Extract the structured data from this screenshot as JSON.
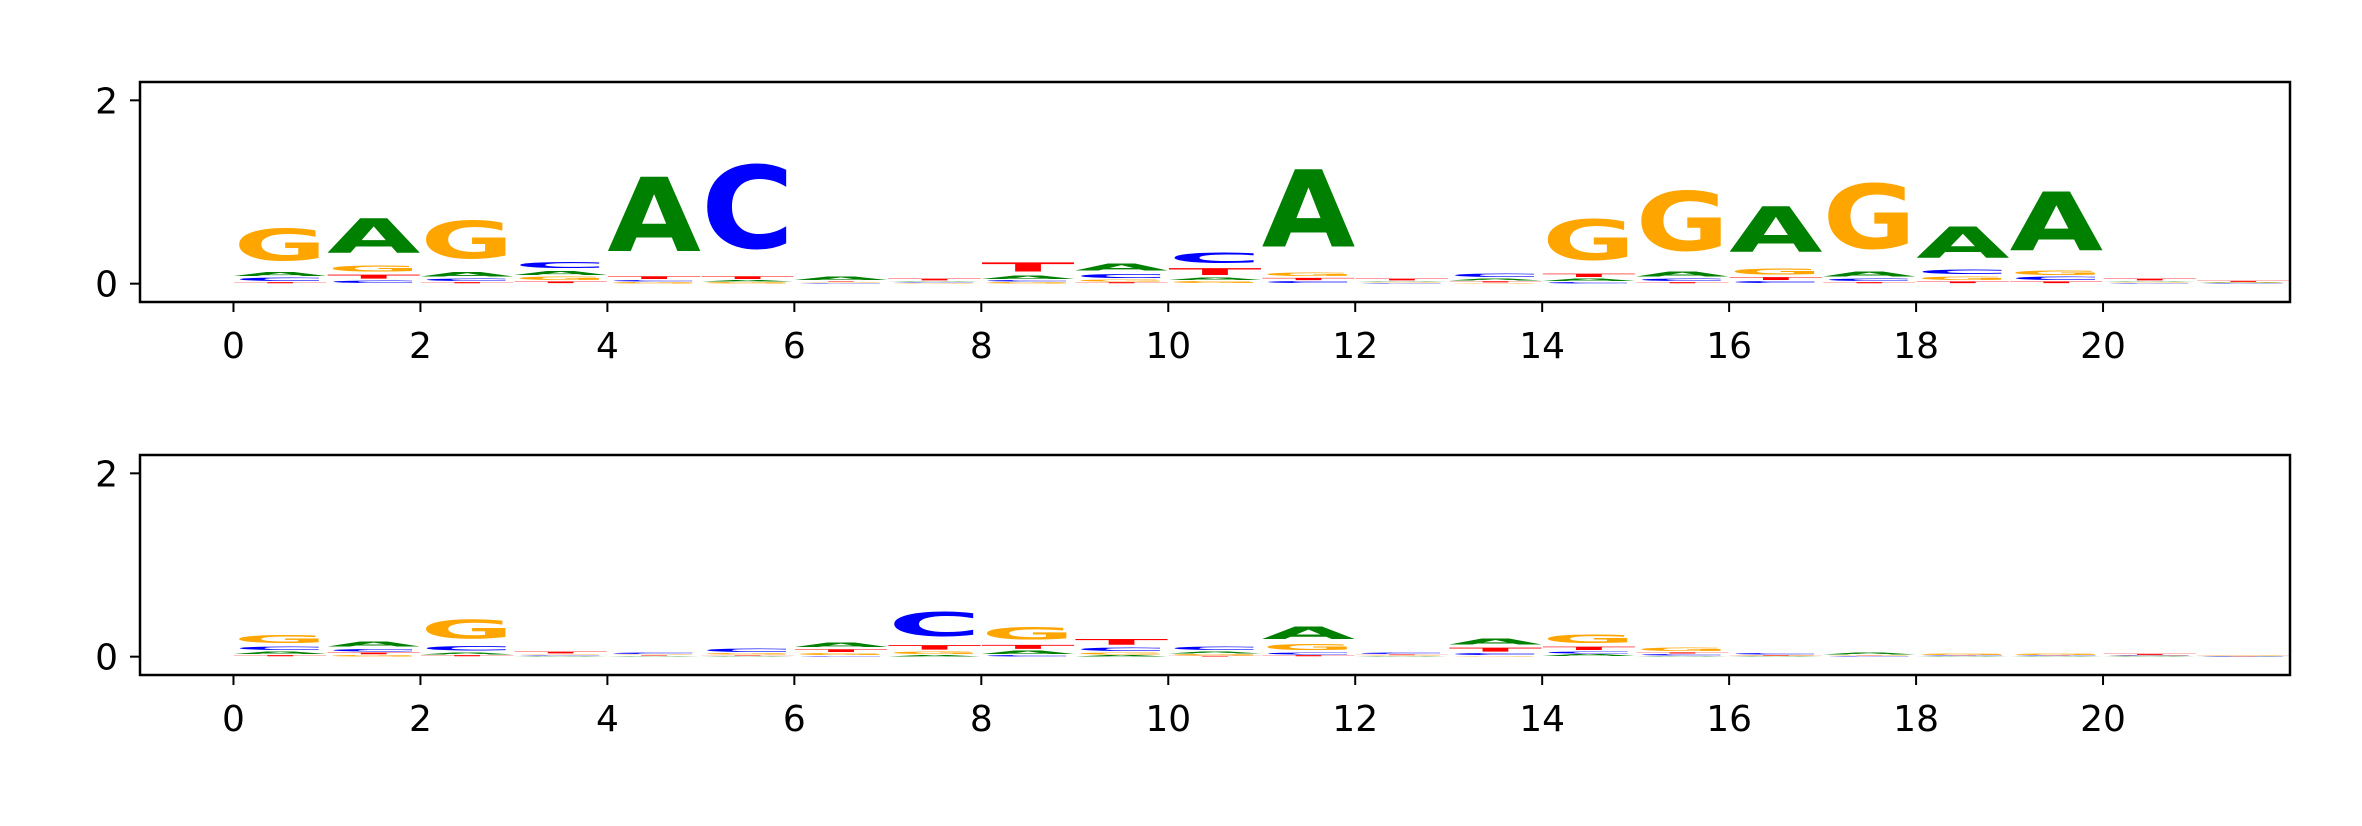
{
  "colors": {
    "A": "#008000",
    "C": "#0000ff",
    "G": "#ffa500",
    "T": "#ff0000"
  },
  "chart_data": [
    {
      "type": "sequence-logo",
      "title": "",
      "xlabel": "",
      "ylabel": "",
      "xlim": [
        -1,
        22
      ],
      "ylim": [
        -0.2,
        2.2
      ],
      "xticks": [
        0,
        2,
        4,
        6,
        8,
        10,
        12,
        14,
        16,
        18,
        20
      ],
      "yticks": [
        0,
        2
      ],
      "positions": [
        {
          "x": 0,
          "stack": [
            {
              "base": "T",
              "h": 0.02
            },
            {
              "base": "C",
              "h": 0.05
            },
            {
              "base": "A",
              "h": 0.07
            },
            {
              "base": "G",
              "h": 0.56
            }
          ]
        },
        {
          "x": 1,
          "stack": [
            {
              "base": "C",
              "h": 0.04
            },
            {
              "base": "T",
              "h": 0.07
            },
            {
              "base": "G",
              "h": 0.1
            },
            {
              "base": "A",
              "h": 0.6
            }
          ]
        },
        {
          "x": 2,
          "stack": [
            {
              "base": "T",
              "h": 0.02
            },
            {
              "base": "C",
              "h": 0.04
            },
            {
              "base": "A",
              "h": 0.08
            },
            {
              "base": "G",
              "h": 0.66
            }
          ]
        },
        {
          "x": 3,
          "stack": [
            {
              "base": "T",
              "h": 0.03
            },
            {
              "base": "G",
              "h": 0.05
            },
            {
              "base": "A",
              "h": 0.07
            },
            {
              "base": "C",
              "h": 0.1
            }
          ]
        },
        {
          "x": 4,
          "stack": [
            {
              "base": "G",
              "h": 0.02
            },
            {
              "base": "C",
              "h": 0.02
            },
            {
              "base": "T",
              "h": 0.05
            },
            {
              "base": "A",
              "h": 1.3
            }
          ]
        },
        {
          "x": 5,
          "stack": [
            {
              "base": "G",
              "h": 0.02
            },
            {
              "base": "A",
              "h": 0.02
            },
            {
              "base": "T",
              "h": 0.05
            },
            {
              "base": "C",
              "h": 1.45
            }
          ]
        },
        {
          "x": 6,
          "stack": [
            {
              "base": "C",
              "h": 0.01
            },
            {
              "base": "G",
              "h": 0.01
            },
            {
              "base": "T",
              "h": 0.01
            },
            {
              "base": "A",
              "h": 0.05
            }
          ]
        },
        {
          "x": 7,
          "stack": [
            {
              "base": "G",
              "h": 0.01
            },
            {
              "base": "C",
              "h": 0.01
            },
            {
              "base": "A",
              "h": 0.01
            },
            {
              "base": "T",
              "h": 0.03
            }
          ]
        },
        {
          "x": 8,
          "stack": [
            {
              "base": "G",
              "h": 0.02
            },
            {
              "base": "C",
              "h": 0.02
            },
            {
              "base": "A",
              "h": 0.06
            },
            {
              "base": "T",
              "h": 0.16
            }
          ]
        },
        {
          "x": 9,
          "stack": [
            {
              "base": "T",
              "h": 0.02
            },
            {
              "base": "G",
              "h": 0.03
            },
            {
              "base": "C",
              "h": 0.07
            },
            {
              "base": "A",
              "h": 0.12
            }
          ]
        },
        {
          "x": 10,
          "stack": [
            {
              "base": "G",
              "h": 0.03
            },
            {
              "base": "A",
              "h": 0.04
            },
            {
              "base": "T",
              "h": 0.12
            },
            {
              "base": "C",
              "h": 0.18
            }
          ]
        },
        {
          "x": 11,
          "stack": [
            {
              "base": "C",
              "h": 0.03
            },
            {
              "base": "T",
              "h": 0.04
            },
            {
              "base": "G",
              "h": 0.06
            },
            {
              "base": "A",
              "h": 1.35
            }
          ]
        },
        {
          "x": 12,
          "stack": [
            {
              "base": "C",
              "h": 0.01
            },
            {
              "base": "G",
              "h": 0.01
            },
            {
              "base": "A",
              "h": 0.01
            },
            {
              "base": "T",
              "h": 0.03
            }
          ]
        },
        {
          "x": 13,
          "stack": [
            {
              "base": "G",
              "h": 0.01
            },
            {
              "base": "T",
              "h": 0.02
            },
            {
              "base": "A",
              "h": 0.03
            },
            {
              "base": "C",
              "h": 0.06
            }
          ]
        },
        {
          "x": 14,
          "stack": [
            {
              "base": "C",
              "h": 0.02
            },
            {
              "base": "A",
              "h": 0.04
            },
            {
              "base": "T",
              "h": 0.06
            },
            {
              "base": "G",
              "h": 0.7
            }
          ]
        },
        {
          "x": 15,
          "stack": [
            {
              "base": "T",
              "h": 0.02
            },
            {
              "base": "C",
              "h": 0.04
            },
            {
              "base": "A",
              "h": 0.09
            },
            {
              "base": "G",
              "h": 1.03
            }
          ]
        },
        {
          "x": 16,
          "stack": [
            {
              "base": "C",
              "h": 0.03
            },
            {
              "base": "T",
              "h": 0.05
            },
            {
              "base": "G",
              "h": 0.1
            },
            {
              "base": "A",
              "h": 0.8
            }
          ]
        },
        {
          "x": 17,
          "stack": [
            {
              "base": "T",
              "h": 0.02
            },
            {
              "base": "C",
              "h": 0.04
            },
            {
              "base": "A",
              "h": 0.09
            },
            {
              "base": "G",
              "h": 1.13
            }
          ]
        },
        {
          "x": 18,
          "stack": [
            {
              "base": "T",
              "h": 0.03
            },
            {
              "base": "G",
              "h": 0.06
            },
            {
              "base": "C",
              "h": 0.08
            },
            {
              "base": "A",
              "h": 0.55
            }
          ]
        },
        {
          "x": 19,
          "stack": [
            {
              "base": "T",
              "h": 0.03
            },
            {
              "base": "C",
              "h": 0.05
            },
            {
              "base": "G",
              "h": 0.08
            },
            {
              "base": "A",
              "h": 1.02
            }
          ]
        },
        {
          "x": 20,
          "stack": [
            {
              "base": "C",
              "h": 0.01
            },
            {
              "base": "G",
              "h": 0.01
            },
            {
              "base": "A",
              "h": 0.01
            },
            {
              "base": "T",
              "h": 0.03
            }
          ]
        },
        {
          "x": 21,
          "stack": [
            {
              "base": "C",
              "h": 0.005
            },
            {
              "base": "G",
              "h": 0.005
            },
            {
              "base": "A",
              "h": 0.005
            },
            {
              "base": "T",
              "h": 0.02
            }
          ]
        }
      ]
    },
    {
      "type": "sequence-logo",
      "title": "",
      "xlabel": "",
      "ylabel": "",
      "xlim": [
        -1,
        22
      ],
      "ylim": [
        -0.2,
        2.2
      ],
      "xticks": [
        0,
        2,
        4,
        6,
        8,
        10,
        12,
        14,
        16,
        18,
        20
      ],
      "yticks": [
        0,
        2
      ],
      "positions": [
        {
          "x": 0,
          "stack": [
            {
              "base": "T",
              "h": 0.02
            },
            {
              "base": "A",
              "h": 0.04
            },
            {
              "base": "C",
              "h": 0.06
            },
            {
              "base": "G",
              "h": 0.14
            }
          ]
        },
        {
          "x": 1,
          "stack": [
            {
              "base": "G",
              "h": 0.02
            },
            {
              "base": "T",
              "h": 0.03
            },
            {
              "base": "C",
              "h": 0.04
            },
            {
              "base": "A",
              "h": 0.09
            }
          ]
        },
        {
          "x": 2,
          "stack": [
            {
              "base": "T",
              "h": 0.02
            },
            {
              "base": "A",
              "h": 0.03
            },
            {
              "base": "C",
              "h": 0.08
            },
            {
              "base": "G",
              "h": 0.33
            }
          ]
        },
        {
          "x": 3,
          "stack": [
            {
              "base": "A",
              "h": 0.01
            },
            {
              "base": "C",
              "h": 0.01
            },
            {
              "base": "G",
              "h": 0.01
            },
            {
              "base": "T",
              "h": 0.03
            }
          ]
        },
        {
          "x": 4,
          "stack": [
            {
              "base": "A",
              "h": 0.005
            },
            {
              "base": "T",
              "h": 0.01
            },
            {
              "base": "G",
              "h": 0.01
            },
            {
              "base": "C",
              "h": 0.02
            }
          ]
        },
        {
          "x": 5,
          "stack": [
            {
              "base": "A",
              "h": 0.01
            },
            {
              "base": "T",
              "h": 0.01
            },
            {
              "base": "G",
              "h": 0.02
            },
            {
              "base": "C",
              "h": 0.06
            }
          ]
        },
        {
          "x": 6,
          "stack": [
            {
              "base": "C",
              "h": 0.01
            },
            {
              "base": "G",
              "h": 0.03
            },
            {
              "base": "T",
              "h": 0.05
            },
            {
              "base": "A",
              "h": 0.08
            }
          ]
        },
        {
          "x": 7,
          "stack": [
            {
              "base": "A",
              "h": 0.02
            },
            {
              "base": "G",
              "h": 0.04
            },
            {
              "base": "T",
              "h": 0.08
            },
            {
              "base": "C",
              "h": 0.42
            }
          ]
        },
        {
          "x": 8,
          "stack": [
            {
              "base": "C",
              "h": 0.02
            },
            {
              "base": "A",
              "h": 0.05
            },
            {
              "base": "T",
              "h": 0.07
            },
            {
              "base": "G",
              "h": 0.22
            }
          ]
        },
        {
          "x": 9,
          "stack": [
            {
              "base": "A",
              "h": 0.02
            },
            {
              "base": "G",
              "h": 0.03
            },
            {
              "base": "C",
              "h": 0.06
            },
            {
              "base": "T",
              "h": 0.1
            }
          ]
        },
        {
          "x": 10,
          "stack": [
            {
              "base": "T",
              "h": 0.01
            },
            {
              "base": "G",
              "h": 0.02
            },
            {
              "base": "A",
              "h": 0.03
            },
            {
              "base": "C",
              "h": 0.06
            }
          ]
        },
        {
          "x": 11,
          "stack": [
            {
              "base": "T",
              "h": 0.02
            },
            {
              "base": "C",
              "h": 0.03
            },
            {
              "base": "G",
              "h": 0.1
            },
            {
              "base": "A",
              "h": 0.22
            }
          ]
        },
        {
          "x": 12,
          "stack": [
            {
              "base": "A",
              "h": 0.005
            },
            {
              "base": "G",
              "h": 0.01
            },
            {
              "base": "T",
              "h": 0.01
            },
            {
              "base": "C",
              "h": 0.02
            }
          ]
        },
        {
          "x": 13,
          "stack": [
            {
              "base": "G",
              "h": 0.01
            },
            {
              "base": "C",
              "h": 0.03
            },
            {
              "base": "T",
              "h": 0.07
            },
            {
              "base": "A",
              "h": 0.1
            }
          ]
        },
        {
          "x": 14,
          "stack": [
            {
              "base": "A",
              "h": 0.03
            },
            {
              "base": "C",
              "h": 0.03
            },
            {
              "base": "T",
              "h": 0.06
            },
            {
              "base": "G",
              "h": 0.15
            }
          ]
        },
        {
          "x": 15,
          "stack": [
            {
              "base": "A",
              "h": 0.01
            },
            {
              "base": "C",
              "h": 0.02
            },
            {
              "base": "T",
              "h": 0.02
            },
            {
              "base": "G",
              "h": 0.06
            }
          ]
        },
        {
          "x": 16,
          "stack": [
            {
              "base": "A",
              "h": 0.005
            },
            {
              "base": "G",
              "h": 0.005
            },
            {
              "base": "T",
              "h": 0.01
            },
            {
              "base": "C",
              "h": 0.02
            }
          ]
        },
        {
          "x": 17,
          "stack": [
            {
              "base": "C",
              "h": 0.005
            },
            {
              "base": "G",
              "h": 0.005
            },
            {
              "base": "T",
              "h": 0.005
            },
            {
              "base": "A",
              "h": 0.03
            }
          ]
        },
        {
          "x": 18,
          "stack": [
            {
              "base": "A",
              "h": 0.005
            },
            {
              "base": "C",
              "h": 0.005
            },
            {
              "base": "T",
              "h": 0.005
            },
            {
              "base": "G",
              "h": 0.02
            }
          ]
        },
        {
          "x": 19,
          "stack": [
            {
              "base": "A",
              "h": 0.005
            },
            {
              "base": "C",
              "h": 0.005
            },
            {
              "base": "T",
              "h": 0.005
            },
            {
              "base": "G",
              "h": 0.02
            }
          ]
        },
        {
          "x": 20,
          "stack": [
            {
              "base": "A",
              "h": 0.005
            },
            {
              "base": "C",
              "h": 0.005
            },
            {
              "base": "G",
              "h": 0.005
            },
            {
              "base": "T",
              "h": 0.02
            }
          ]
        },
        {
          "x": 21,
          "stack": [
            {
              "base": "A",
              "h": 0.002
            },
            {
              "base": "C",
              "h": 0.002
            },
            {
              "base": "T",
              "h": 0.002
            },
            {
              "base": "G",
              "h": 0.01
            }
          ]
        }
      ]
    }
  ]
}
